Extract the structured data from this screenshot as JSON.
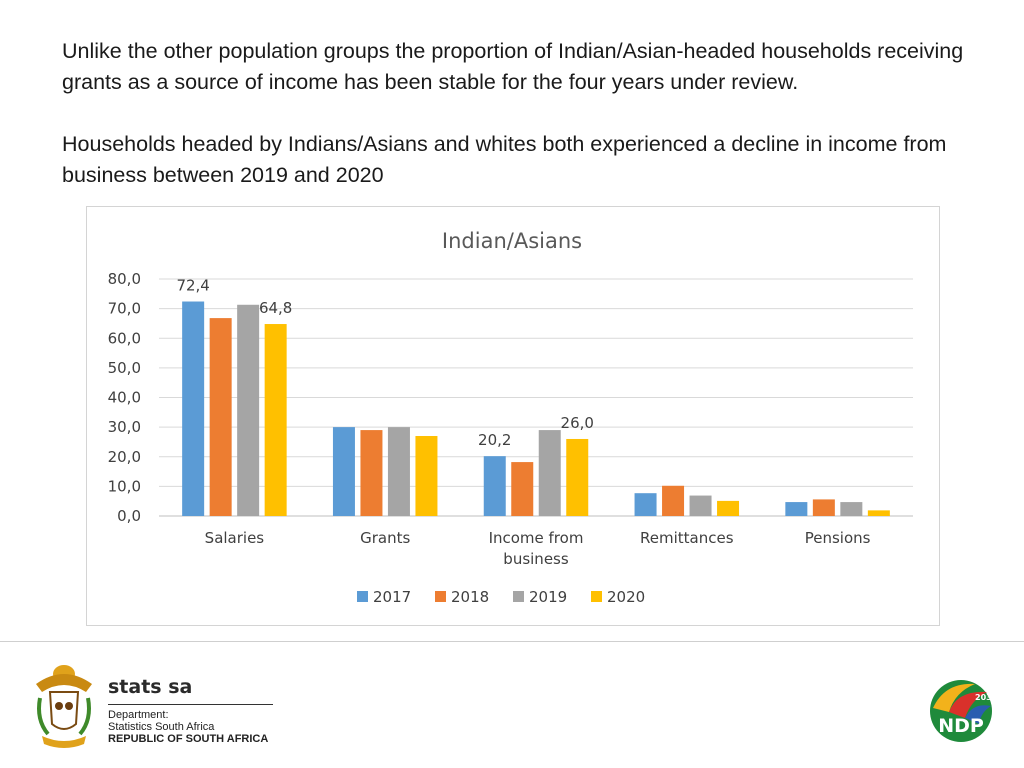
{
  "intro": {
    "paragraph1": "Unlike the other population groups the proportion of Indian/Asian-headed households receiving grants as a source of income has been stable for the four years under review.",
    "paragraph2": "Households headed by Indians/Asians and whites both experienced a decline in income from business between 2019 and 2020"
  },
  "chart_data": {
    "type": "bar",
    "title": "Indian/Asians",
    "xlabel": "",
    "ylabel": "",
    "ylim": [
      0,
      80
    ],
    "yticks": [
      "0,0",
      "10,0",
      "20,0",
      "30,0",
      "40,0",
      "50,0",
      "60,0",
      "70,0",
      "80,0"
    ],
    "grid": true,
    "legend_position": "bottom",
    "categories": [
      [
        "Salaries"
      ],
      [
        "Grants"
      ],
      [
        "Income from",
        "business"
      ],
      [
        "Remittances"
      ],
      [
        "Pensions"
      ]
    ],
    "series": [
      {
        "name": "2017",
        "color": "#5b9bd5",
        "values": [
          72.4,
          30.0,
          20.2,
          7.7,
          4.7
        ]
      },
      {
        "name": "2018",
        "color": "#ed7d31",
        "values": [
          66.8,
          29.0,
          18.2,
          10.2,
          5.6
        ]
      },
      {
        "name": "2019",
        "color": "#a5a5a5",
        "values": [
          71.3,
          30.0,
          29.0,
          6.9,
          4.7
        ]
      },
      {
        "name": "2020",
        "color": "#ffc000",
        "values": [
          64.8,
          27.0,
          26.0,
          5.1,
          1.9
        ]
      }
    ],
    "data_labels": [
      {
        "series": 0,
        "category": 0,
        "text": "72,4"
      },
      {
        "series": 3,
        "category": 0,
        "text": "64,8"
      },
      {
        "series": 0,
        "category": 2,
        "text": "20,2"
      },
      {
        "series": 3,
        "category": 2,
        "text": "26,0"
      }
    ]
  },
  "footer": {
    "brand_name": "stats sa",
    "brand_line1": "Department:",
    "brand_line2": "Statistics South Africa",
    "brand_line3": "REPUBLIC OF SOUTH AFRICA",
    "ndp_text": "NDP",
    "ndp_year": "2030",
    "crest_icon": "coat-of-arms-icon",
    "ndp_icon": "ndp-2030-logo-icon"
  }
}
